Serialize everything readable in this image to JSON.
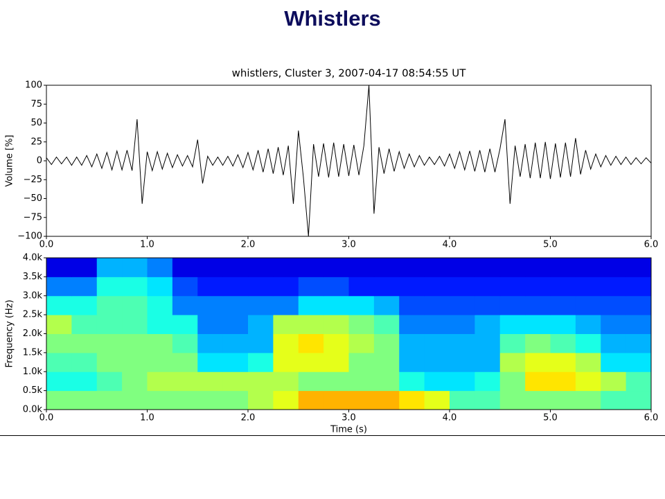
{
  "title": "Whistlers",
  "chart_data": [
    {
      "type": "line",
      "title": "whistlers, Cluster 3, 2007-04-17 08:54:55 UT",
      "ylabel": "Volume [%]",
      "color": "#000000",
      "x": [
        0,
        0.05,
        0.1,
        0.15,
        0.2,
        0.25,
        0.3,
        0.35,
        0.4,
        0.45,
        0.5,
        0.55,
        0.6,
        0.65,
        0.7,
        0.75,
        0.8,
        0.85,
        0.9,
        0.95,
        1,
        1.05,
        1.1,
        1.15,
        1.2,
        1.25,
        1.3,
        1.35,
        1.4,
        1.45,
        1.5,
        1.55,
        1.6,
        1.65,
        1.7,
        1.75,
        1.8,
        1.85,
        1.9,
        1.95,
        2,
        2.05,
        2.1,
        2.15,
        2.2,
        2.25,
        2.3,
        2.35,
        2.4,
        2.45,
        2.5,
        2.55,
        2.6,
        2.65,
        2.7,
        2.75,
        2.8,
        2.85,
        2.9,
        2.95,
        3,
        3.05,
        3.1,
        3.15,
        3.2,
        3.25,
        3.3,
        3.35,
        3.4,
        3.45,
        3.5,
        3.55,
        3.6,
        3.65,
        3.7,
        3.75,
        3.8,
        3.85,
        3.9,
        3.95,
        4,
        4.05,
        4.1,
        4.15,
        4.2,
        4.25,
        4.3,
        4.35,
        4.4,
        4.45,
        4.5,
        4.55,
        4.6,
        4.65,
        4.7,
        4.75,
        4.8,
        4.85,
        4.9,
        4.95,
        5,
        5.05,
        5.1,
        5.15,
        5.2,
        5.25,
        5.3,
        5.35,
        5.4,
        5.45,
        5.5,
        5.55,
        5.6,
        5.65,
        5.7,
        5.75,
        5.8,
        5.85,
        5.9,
        5.95,
        6
      ],
      "values": [
        4,
        -5,
        5,
        -4,
        5,
        -6,
        5,
        -6,
        7,
        -8,
        9,
        -10,
        11,
        -12,
        13,
        -12,
        14,
        -13,
        55,
        -57,
        12,
        -13,
        12,
        -11,
        10,
        -9,
        8,
        -7,
        7,
        -8,
        28,
        -30,
        6,
        -6,
        5,
        -6,
        6,
        -7,
        8,
        -9,
        11,
        -12,
        14,
        -15,
        16,
        -17,
        18,
        -19,
        20,
        -57,
        40,
        -22,
        -100,
        22,
        -21,
        23,
        -22,
        24,
        -21,
        22,
        -20,
        21,
        -19,
        20,
        100,
        -70,
        18,
        -17,
        16,
        -14,
        12,
        -10,
        9,
        -8,
        7,
        -6,
        5,
        -5,
        6,
        -7,
        9,
        -10,
        12,
        -12,
        13,
        -14,
        14,
        -15,
        16,
        -15,
        16,
        55,
        -57,
        20,
        -21,
        22,
        -23,
        24,
        -23,
        25,
        -24,
        23,
        -22,
        24,
        -21,
        30,
        -18,
        14,
        -11,
        9,
        -8,
        7,
        -6,
        6,
        -5,
        5,
        -5,
        4,
        -4,
        4,
        -3
      ],
      "xlim": [
        0,
        6
      ],
      "ylim": [
        -100,
        100
      ],
      "xticks": [
        {
          "value": 0,
          "label": "0.0"
        },
        {
          "value": 1,
          "label": "1.0"
        },
        {
          "value": 2,
          "label": "2.0"
        },
        {
          "value": 3,
          "label": "3.0"
        },
        {
          "value": 4,
          "label": "4.0"
        },
        {
          "value": 5,
          "label": "5.0"
        },
        {
          "value": 6,
          "label": "6.0"
        }
      ],
      "yticks": [
        {
          "value": -100,
          "label": "−100"
        },
        {
          "value": -75,
          "label": "−75"
        },
        {
          "value": -50,
          "label": "−50"
        },
        {
          "value": -25,
          "label": "−25"
        },
        0,
        25,
        50,
        75,
        100
      ]
    },
    {
      "type": "heatmap",
      "xlabel": "Time (s)",
      "ylabel": "Frequency (Hz)",
      "colormap": "jet",
      "zlim": [
        0,
        1
      ],
      "xbins": [
        0,
        0.25,
        0.5,
        0.75,
        1,
        1.25,
        1.5,
        1.75,
        2,
        2.25,
        2.5,
        2.75,
        3,
        3.25,
        3.5,
        3.75,
        4,
        4.25,
        4.5,
        4.75,
        5,
        5.25,
        5.5,
        5.75,
        6
      ],
      "ybins": [
        0,
        500,
        1000,
        1500,
        2000,
        2500,
        3000,
        3500,
        4000
      ],
      "z": [
        [
          0.5,
          0.5,
          0.5,
          0.5,
          0.5,
          0.5,
          0.5,
          0.5,
          0.55,
          0.6,
          0.7,
          0.7,
          0.7,
          0.7,
          0.65,
          0.6,
          0.45,
          0.45,
          0.5,
          0.5,
          0.5,
          0.5,
          0.45,
          0.45
        ],
        [
          0.4,
          0.4,
          0.45,
          0.5,
          0.55,
          0.55,
          0.55,
          0.55,
          0.55,
          0.55,
          0.5,
          0.5,
          0.5,
          0.5,
          0.4,
          0.35,
          0.35,
          0.4,
          0.5,
          0.65,
          0.65,
          0.6,
          0.55,
          0.45
        ],
        [
          0.45,
          0.45,
          0.5,
          0.5,
          0.5,
          0.5,
          0.35,
          0.35,
          0.4,
          0.6,
          0.6,
          0.6,
          0.5,
          0.5,
          0.3,
          0.3,
          0.3,
          0.3,
          0.55,
          0.6,
          0.6,
          0.55,
          0.35,
          0.35
        ],
        [
          0.5,
          0.5,
          0.5,
          0.5,
          0.5,
          0.45,
          0.3,
          0.3,
          0.3,
          0.6,
          0.65,
          0.6,
          0.55,
          0.5,
          0.3,
          0.3,
          0.3,
          0.3,
          0.45,
          0.5,
          0.45,
          0.4,
          0.3,
          0.3
        ],
        [
          0.55,
          0.45,
          0.45,
          0.45,
          0.4,
          0.4,
          0.25,
          0.25,
          0.3,
          0.55,
          0.55,
          0.55,
          0.5,
          0.45,
          0.25,
          0.25,
          0.25,
          0.3,
          0.35,
          0.35,
          0.35,
          0.3,
          0.25,
          0.25
        ],
        [
          0.4,
          0.4,
          0.45,
          0.45,
          0.4,
          0.25,
          0.25,
          0.25,
          0.25,
          0.25,
          0.35,
          0.35,
          0.35,
          0.3,
          0.2,
          0.2,
          0.2,
          0.2,
          0.2,
          0.2,
          0.2,
          0.2,
          0.2,
          0.2
        ],
        [
          0.25,
          0.25,
          0.4,
          0.4,
          0.35,
          0.2,
          0.15,
          0.15,
          0.15,
          0.15,
          0.2,
          0.2,
          0.15,
          0.15,
          0.15,
          0.15,
          0.15,
          0.15,
          0.15,
          0.15,
          0.15,
          0.15,
          0.15,
          0.15
        ],
        [
          0.1,
          0.1,
          0.3,
          0.3,
          0.25,
          0.1,
          0.1,
          0.1,
          0.1,
          0.1,
          0.1,
          0.1,
          0.1,
          0.1,
          0.1,
          0.1,
          0.1,
          0.1,
          0.1,
          0.1,
          0.1,
          0.1,
          0.1,
          0.1
        ]
      ],
      "xlim": [
        0,
        6
      ],
      "ylim": [
        0,
        4000
      ],
      "xticks": [
        {
          "value": 0,
          "label": "0.0"
        },
        {
          "value": 1,
          "label": "1.0"
        },
        {
          "value": 2,
          "label": "2.0"
        },
        {
          "value": 3,
          "label": "3.0"
        },
        {
          "value": 4,
          "label": "4.0"
        },
        {
          "value": 5,
          "label": "5.0"
        },
        {
          "value": 6,
          "label": "6.0"
        }
      ],
      "yticks": [
        {
          "value": 0,
          "label": "0.0k"
        },
        {
          "value": 500,
          "label": "0.5k"
        },
        {
          "value": 1000,
          "label": "1.0k"
        },
        {
          "value": 1500,
          "label": "1.5k"
        },
        {
          "value": 2000,
          "label": "2.0k"
        },
        {
          "value": 2500,
          "label": "2.5k"
        },
        {
          "value": 3000,
          "label": "3.0k"
        },
        {
          "value": 3500,
          "label": "3.5k"
        },
        {
          "value": 4000,
          "label": "4.0k"
        }
      ]
    }
  ]
}
